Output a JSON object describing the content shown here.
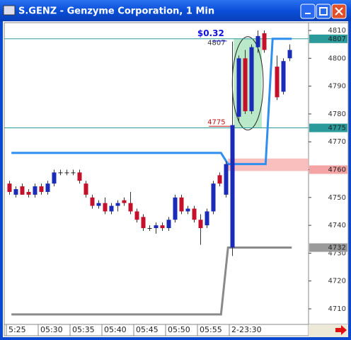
{
  "chart_data": {
    "type": "candlestick",
    "title": "S.GENZ - Genzyme Corporation, 1 Min",
    "x": [
      25.5,
      26.5,
      27.5,
      28.5,
      29.5,
      30.5,
      31.5,
      32.5,
      33.5,
      34.5,
      35.5,
      36.5,
      37.5,
      38.5,
      39.5,
      40.5,
      41.5,
      42.5,
      43.5,
      44.5,
      45.5,
      46.5,
      47.5,
      48.5,
      49.5,
      50.5,
      51.5,
      52.5,
      53.5,
      54.5,
      55.5,
      56.5,
      57.5,
      58.5,
      59.5,
      60.5,
      61.5,
      62.5,
      63.5,
      64.5,
      65.5,
      67.5,
      68.5,
      69.5
    ],
    "open": [
      4755,
      4751,
      4754,
      4752,
      4751,
      4754,
      4752,
      4755,
      4759,
      4759,
      4759,
      4759,
      4755,
      4750,
      4747,
      4748,
      4745,
      4747,
      4749,
      4748,
      4745,
      4743,
      4739,
      4739,
      4740,
      4739,
      4742,
      4750,
      4745,
      4746,
      4742,
      4740,
      4745,
      4758,
      4751,
      4732,
      4779,
      4800,
      4781,
      4804,
      4809,
      4797,
      4788,
      4800
    ],
    "high": [
      4756,
      4754,
      4755,
      4753,
      4755,
      4755,
      4756,
      4760,
      4760,
      4760,
      4760,
      4760,
      4756,
      4751,
      4749,
      4750,
      4748,
      4749,
      4750,
      4752,
      4746,
      4744,
      4740,
      4741,
      4741,
      4743,
      4751,
      4751,
      4747,
      4747,
      4744,
      4746,
      4756,
      4759,
      4763,
      4806,
      4801,
      4803,
      4805,
      4810,
      4810,
      4801,
      4800,
      4805
    ],
    "low": [
      4751,
      4750,
      4751,
      4750,
      4750,
      4751,
      4751,
      4754,
      4758,
      4758,
      4758,
      4755,
      4750,
      4746,
      4746,
      4744,
      4744,
      4745,
      4747,
      4744,
      4741,
      4738,
      4738,
      4737,
      4738,
      4738,
      4741,
      4744,
      4744,
      4741,
      4733,
      4739,
      4744,
      4754,
      4750,
      4729,
      4777,
      4780,
      4780,
      4802,
      4802,
      4785,
      4787,
      4799
    ],
    "close": [
      4752,
      4753,
      4751,
      4751,
      4754,
      4752,
      4755,
      4759,
      4759,
      4759,
      4759,
      4756,
      4751,
      4747,
      4748,
      4745,
      4747,
      4748,
      4748,
      4745,
      4742,
      4739,
      4739,
      4740,
      4739,
      4742,
      4750,
      4745,
      4746,
      4742,
      4739,
      4745,
      4755,
      4755,
      4762,
      4776,
      4800,
      4781,
      4804,
      4808,
      4803,
      4786,
      4799,
      4803
    ],
    "up_color": "#1a2bb8",
    "down_color": "#c4102a",
    "xlim": [
      24.67,
      72.44
    ],
    "ylim": [
      4704.4,
      4812.8
    ],
    "xticks": [
      {
        "value": 25,
        "label": "5:25"
      },
      {
        "value": 30,
        "label": "05:30"
      },
      {
        "value": 35,
        "label": "05:35"
      },
      {
        "value": 40,
        "label": "05:40"
      },
      {
        "value": 45,
        "label": "05:45"
      },
      {
        "value": 50,
        "label": "05:50"
      },
      {
        "value": 55,
        "label": "05:55"
      },
      {
        "value": 60,
        "label": "2-23:30"
      }
    ],
    "yticks": [
      4710,
      4720,
      4730,
      4740,
      4750,
      4760,
      4770,
      4780,
      4790,
      4800,
      4810
    ],
    "lines": [
      {
        "color": "#2e8ff0",
        "x": [
          25.8,
          58.7,
          59.8,
          65.7,
          66.8,
          69.8
        ],
        "values": [
          4766,
          4766,
          4762,
          4762,
          4807,
          4807
        ]
      },
      {
        "color": "#8a8a8a",
        "x": [
          25.8,
          58.7,
          59.8,
          69.8
        ],
        "values": [
          4708,
          4708,
          4732,
          4732
        ]
      }
    ],
    "band": {
      "from": 4759.5,
      "to": 4764,
      "color": "#f8b4b4"
    },
    "price_levels": [
      {
        "value": 4807,
        "color": "#2a9a9a",
        "line": true
      },
      {
        "value": 4775,
        "color": "#2a9a9a",
        "line": true
      },
      {
        "value": 4760,
        "color": "#f4a4a4",
        "line": false
      },
      {
        "value": 4732,
        "color": "#9a9a9a",
        "line": false
      }
    ],
    "box": {
      "x": [
        60.7,
        65.1
      ],
      "y": [
        4775,
        4807
      ],
      "color": "#a8e4bc"
    },
    "annotations": [
      "$0.32",
      "4807",
      "4775"
    ]
  }
}
